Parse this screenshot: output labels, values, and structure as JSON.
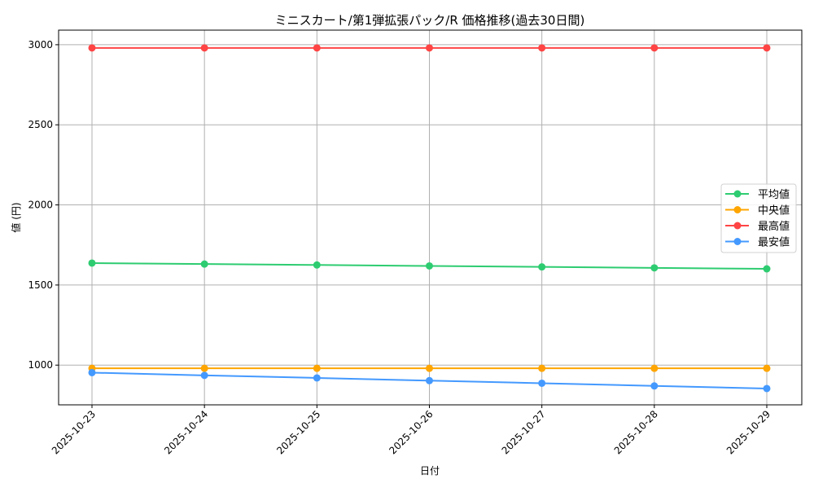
{
  "chart_data": {
    "type": "line",
    "title": "ミニスカート/第1弾拡張パック/R 価格推移(過去30日間)",
    "xlabel": "日付",
    "ylabel": "値 (円)",
    "categories": [
      "2025-10-23",
      "2025-10-24",
      "2025-10-25",
      "2025-10-26",
      "2025-10-27",
      "2025-10-28",
      "2025-10-29"
    ],
    "ylim": [
      752,
      3091
    ],
    "yticks": [
      1000,
      1500,
      2000,
      2500,
      3000
    ],
    "grid": true,
    "legend_position": "right",
    "series": [
      {
        "name": "平均値",
        "color": "#2ecc71",
        "values": [
          1637,
          1631,
          1625,
          1619,
          1613,
          1607,
          1601
        ]
      },
      {
        "name": "中央値",
        "color": "#ffa500",
        "values": [
          980,
          980,
          980,
          980,
          980,
          980,
          980
        ]
      },
      {
        "name": "最高値",
        "color": "#ff4444",
        "values": [
          2980,
          2980,
          2980,
          2980,
          2980,
          2980,
          2980
        ]
      },
      {
        "name": "最安値",
        "color": "#4499ff",
        "values": [
          953,
          936,
          920,
          903,
          887,
          870,
          854
        ]
      }
    ]
  }
}
